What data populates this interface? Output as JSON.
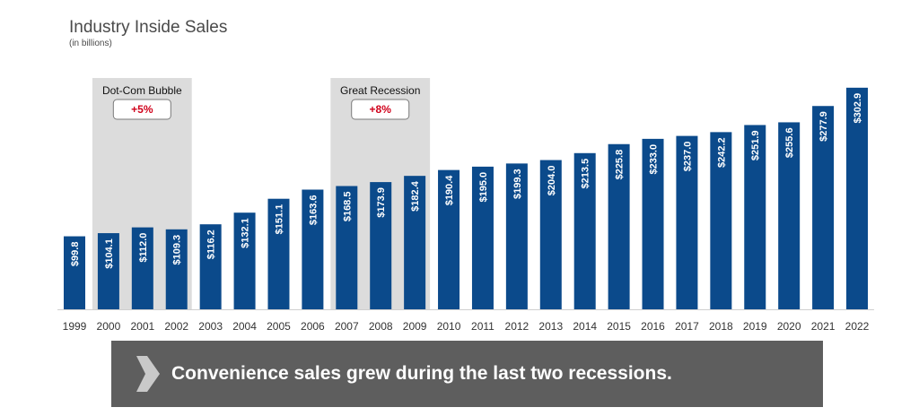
{
  "chart_data": {
    "type": "bar",
    "title": "Industry Inside Sales",
    "subtitle": "(in billions)",
    "categories": [
      "1999",
      "2000",
      "2001",
      "2002",
      "2003",
      "2004",
      "2005",
      "2006",
      "2007",
      "2008",
      "2009",
      "2010",
      "2011",
      "2012",
      "2013",
      "2014",
      "2015",
      "2016",
      "2017",
      "2018",
      "2019",
      "2020",
      "2021",
      "2022"
    ],
    "values": [
      99.8,
      104.1,
      112.0,
      109.3,
      116.2,
      132.1,
      151.1,
      163.6,
      168.5,
      173.9,
      182.4,
      190.4,
      195.0,
      199.3,
      204.0,
      213.5,
      225.8,
      233.0,
      237.0,
      242.2,
      251.9,
      255.6,
      277.9,
      302.9
    ],
    "labels": [
      "$99.8",
      "$104.1",
      "$112.0",
      "$109.3",
      "$116.2",
      "$132.1",
      "$151.1",
      "$163.6",
      "$168.5",
      "$173.9",
      "$182.4",
      "$190.4",
      "$195.0",
      "$199.3",
      "$204.0",
      "$213.5",
      "$225.8",
      "$233.0",
      "$237.0",
      "$242.2",
      "$251.9",
      "$255.6",
      "$277.9",
      "$302.9"
    ],
    "ylim": [
      0,
      320
    ],
    "grid": false,
    "colors": {
      "bar": "#0b4a8b",
      "highlight": "#dcdcdc",
      "callout_text": "#d0021b",
      "banner": "#5e5e5e"
    },
    "highlights": [
      {
        "label": "Dot-Com Bubble",
        "callout": "+5%",
        "from": "2000",
        "to": "2002"
      },
      {
        "label": "Great Recession",
        "callout": "+8%",
        "from": "2007",
        "to": "2009"
      }
    ]
  },
  "banner": {
    "text": "Convenience sales grew during the last two recessions.",
    "icon": "chevron-right-icon"
  }
}
